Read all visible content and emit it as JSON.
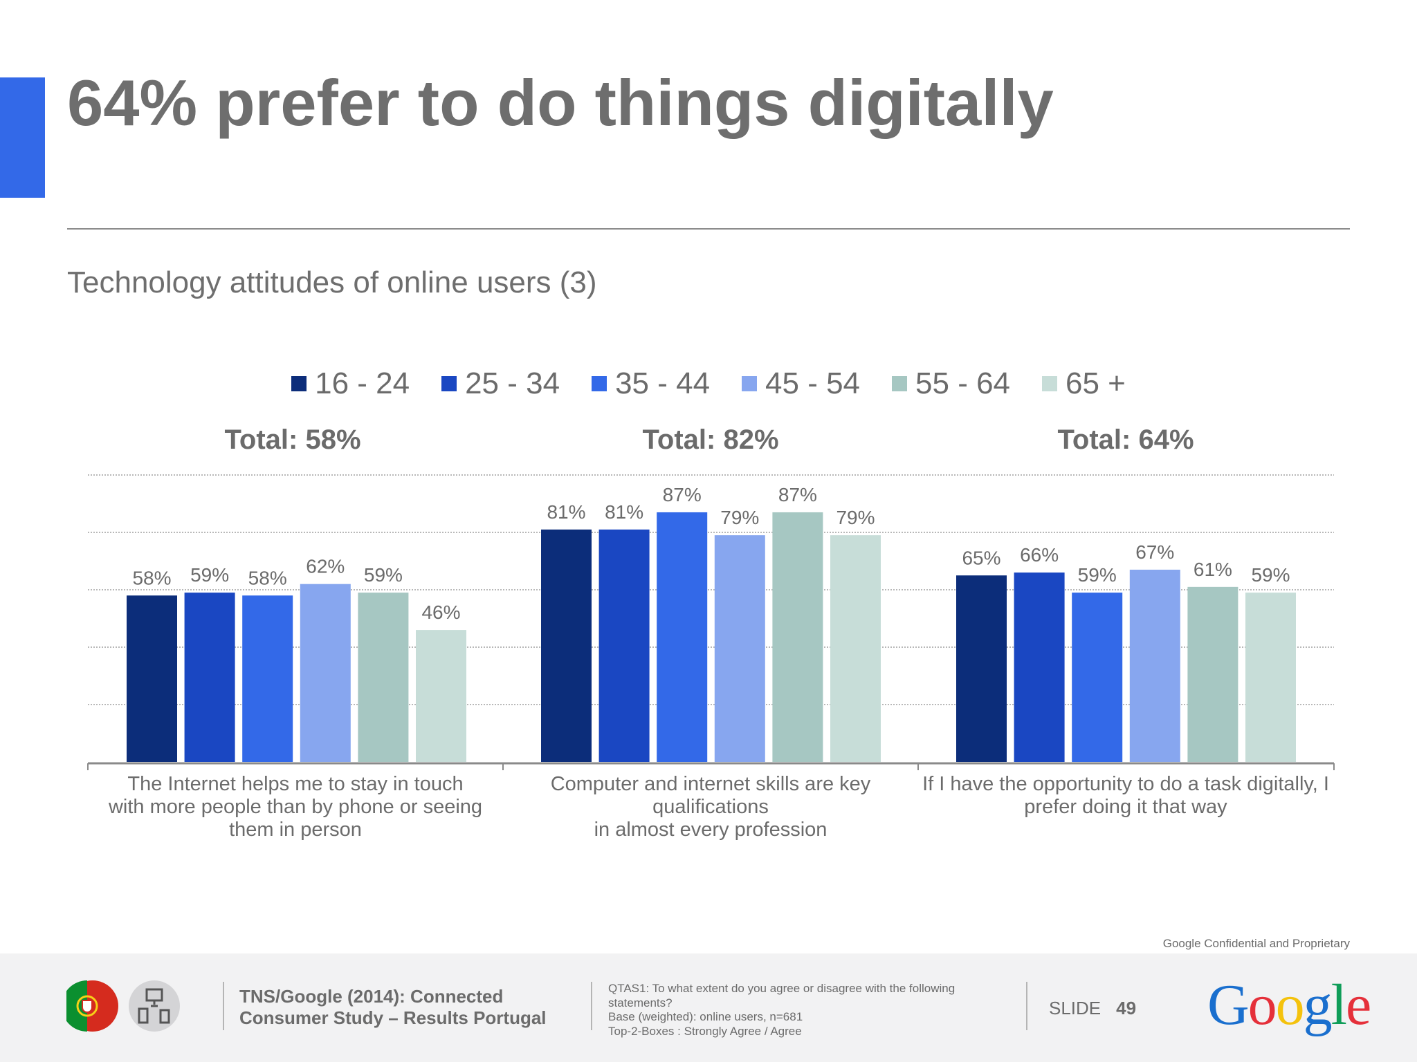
{
  "header": {
    "title": "64% prefer to do things digitally",
    "subtitle": "Technology attitudes of online users (3)",
    "accent_color": "#3369e8"
  },
  "chart_data": {
    "type": "bar",
    "ylim": [
      0,
      100
    ],
    "grid": true,
    "legend_placement": "top",
    "categories": [
      "The Internet helps me to stay in touch with more people than by phone or seeing them in person",
      "Computer and internet skills are key qualifications in almost every profession",
      "If I have the opportunity to do a task digitally, I prefer doing it that way"
    ],
    "category_lines": [
      [
        "The Internet helps me to stay in touch",
        "with more people than by phone or seeing",
        "them in person"
      ],
      [
        "Computer and internet skills are key",
        "qualifications",
        "in almost every profession"
      ],
      [
        "If I have the opportunity to do a task digitally, I",
        "prefer doing it that way"
      ]
    ],
    "totals": [
      "Total: 58%",
      "Total: 82%",
      "Total: 64%"
    ],
    "series": [
      {
        "name": "16 - 24",
        "color": "#0c2d7a",
        "values": [
          58,
          81,
          65
        ]
      },
      {
        "name": "25 - 34",
        "color": "#1a47c2",
        "values": [
          59,
          81,
          66
        ]
      },
      {
        "name": "35 - 44",
        "color": "#3369e8",
        "values": [
          58,
          87,
          59
        ]
      },
      {
        "name": "45 - 54",
        "color": "#87a6ef",
        "values": [
          62,
          79,
          67
        ]
      },
      {
        "name": "55 - 64",
        "color": "#a6c7c2",
        "values": [
          59,
          87,
          61
        ]
      },
      {
        "name": "65 +",
        "color": "#c7ddd8",
        "values": [
          46,
          79,
          59
        ]
      }
    ]
  },
  "footer": {
    "confidential": "Google Confidential and Proprietary",
    "source_line1": "TNS/Google (2014): Connected",
    "source_line2": "Consumer Study – Results Portugal",
    "notes": [
      "QTAS1: To what extent do you agree or disagree with the following",
      "statements?",
      "Base (weighted): online users, n=681",
      "Top-2-Boxes : Strongly Agree / Agree"
    ],
    "slide_label": "SLIDE",
    "slide_number": "49",
    "logo_text": "Google",
    "icons": [
      "portugal-flag-icon",
      "devices-icon"
    ]
  }
}
